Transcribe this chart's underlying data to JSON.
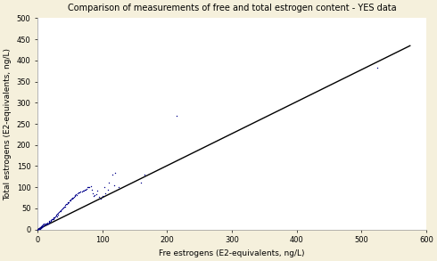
{
  "title": "Comparison of measurements of free and total estrogen content - YES data",
  "xlabel": "Fre estrogens (E2-equivalents, ng/L)",
  "ylabel": "Total estrogens (E2-equivalents, ng/L)",
  "xlim": [
    0,
    600
  ],
  "ylim": [
    0,
    500
  ],
  "xticks": [
    0,
    100,
    200,
    300,
    400,
    500,
    600
  ],
  "yticks": [
    0,
    50,
    100,
    150,
    200,
    250,
    300,
    350,
    400,
    450,
    500
  ],
  "scatter_color": "#00008B",
  "line_color": "#000000",
  "background_color": "#F5F0DC",
  "plot_background": "#FFFFFF",
  "line_x": [
    0,
    575
  ],
  "line_y": [
    0,
    435
  ],
  "scatter_x": [
    0,
    0,
    1,
    1,
    2,
    2,
    3,
    4,
    4,
    5,
    5,
    6,
    6,
    7,
    7,
    8,
    8,
    9,
    10,
    10,
    11,
    12,
    12,
    13,
    14,
    15,
    15,
    16,
    17,
    18,
    18,
    19,
    20,
    20,
    21,
    22,
    23,
    24,
    24,
    25,
    25,
    26,
    27,
    28,
    28,
    30,
    30,
    31,
    32,
    33,
    34,
    35,
    36,
    37,
    38,
    39,
    40,
    41,
    42,
    43,
    44,
    45,
    46,
    47,
    48,
    49,
    50,
    51,
    52,
    53,
    54,
    55,
    56,
    57,
    58,
    59,
    60,
    62,
    63,
    65,
    66,
    68,
    70,
    71,
    72,
    74,
    75,
    77,
    78,
    80,
    82,
    83,
    85,
    87,
    88,
    90,
    92,
    95,
    98,
    100,
    103,
    105,
    108,
    110,
    115,
    118,
    120,
    125,
    160,
    165,
    215,
    525
  ],
  "scatter_y": [
    0,
    1,
    1,
    2,
    2,
    3,
    3,
    2,
    5,
    4,
    7,
    5,
    8,
    6,
    10,
    7,
    11,
    9,
    10,
    13,
    11,
    13,
    15,
    12,
    15,
    14,
    17,
    15,
    18,
    17,
    20,
    19,
    20,
    22,
    22,
    24,
    25,
    24,
    27,
    26,
    29,
    28,
    30,
    32,
    35,
    30,
    38,
    36,
    40,
    42,
    44,
    45,
    43,
    47,
    50,
    52,
    52,
    55,
    55,
    58,
    60,
    60,
    63,
    65,
    65,
    68,
    68,
    70,
    72,
    74,
    75,
    76,
    78,
    80,
    82,
    83,
    82,
    85,
    88,
    88,
    90,
    90,
    92,
    93,
    95,
    95,
    97,
    100,
    100,
    100,
    102,
    95,
    85,
    80,
    82,
    83,
    92,
    78,
    72,
    80,
    100,
    85,
    95,
    110,
    130,
    105,
    135,
    100,
    110,
    130,
    270,
    383
  ]
}
